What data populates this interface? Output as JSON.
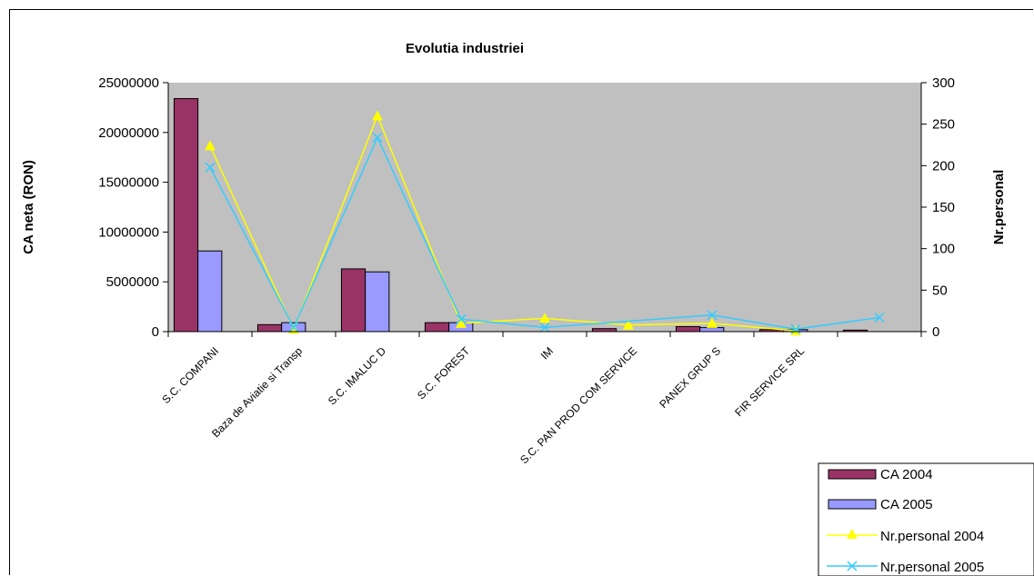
{
  "chart_data": {
    "type": "bar",
    "title": "Evolutia industriei",
    "ylabel": "CA neta (RON)",
    "y2label": "Nr.personal",
    "ylim": [
      0,
      25000000
    ],
    "y2lim": [
      0,
      300
    ],
    "yticks": [
      "0",
      "5000000",
      "10000000",
      "15000000",
      "20000000",
      "25000000"
    ],
    "y2ticks": [
      "0",
      "50",
      "100",
      "150",
      "200",
      "250",
      "300"
    ],
    "grid": false,
    "legend_position": "bottom-right",
    "plot_background": "#c0c0c0",
    "categories": [
      "S.C. COMPANI",
      "Baza de Aviatie si Transp",
      "S.C. IMALUC D",
      "S.C. FOREST",
      "IM",
      "S.C. PAN PROD COM SERVICE",
      "PANEX GRUP S",
      "FIR SERVICE SRL",
      ""
    ],
    "bar_series": [
      {
        "name": "CA 2004",
        "color": "#993366",
        "values": [
          23400000,
          700000,
          6300000,
          900000,
          0,
          300000,
          500000,
          200000,
          150000
        ]
      },
      {
        "name": "CA 2005",
        "color": "#9999ff",
        "values": [
          8100000,
          900000,
          6000000,
          900000,
          0,
          0,
          400000,
          200000,
          0
        ]
      }
    ],
    "line_series": [
      {
        "name": "Nr.personal 2004",
        "color": "#ffff00",
        "marker": "triangle",
        "values": [
          224,
          3,
          260,
          10,
          16,
          8,
          10,
          1,
          null
        ]
      },
      {
        "name": "Nr.personal 2005",
        "color": "#33ccff",
        "marker": "x",
        "values": [
          198,
          5,
          234,
          15,
          5,
          null,
          20,
          3,
          17
        ]
      }
    ]
  }
}
